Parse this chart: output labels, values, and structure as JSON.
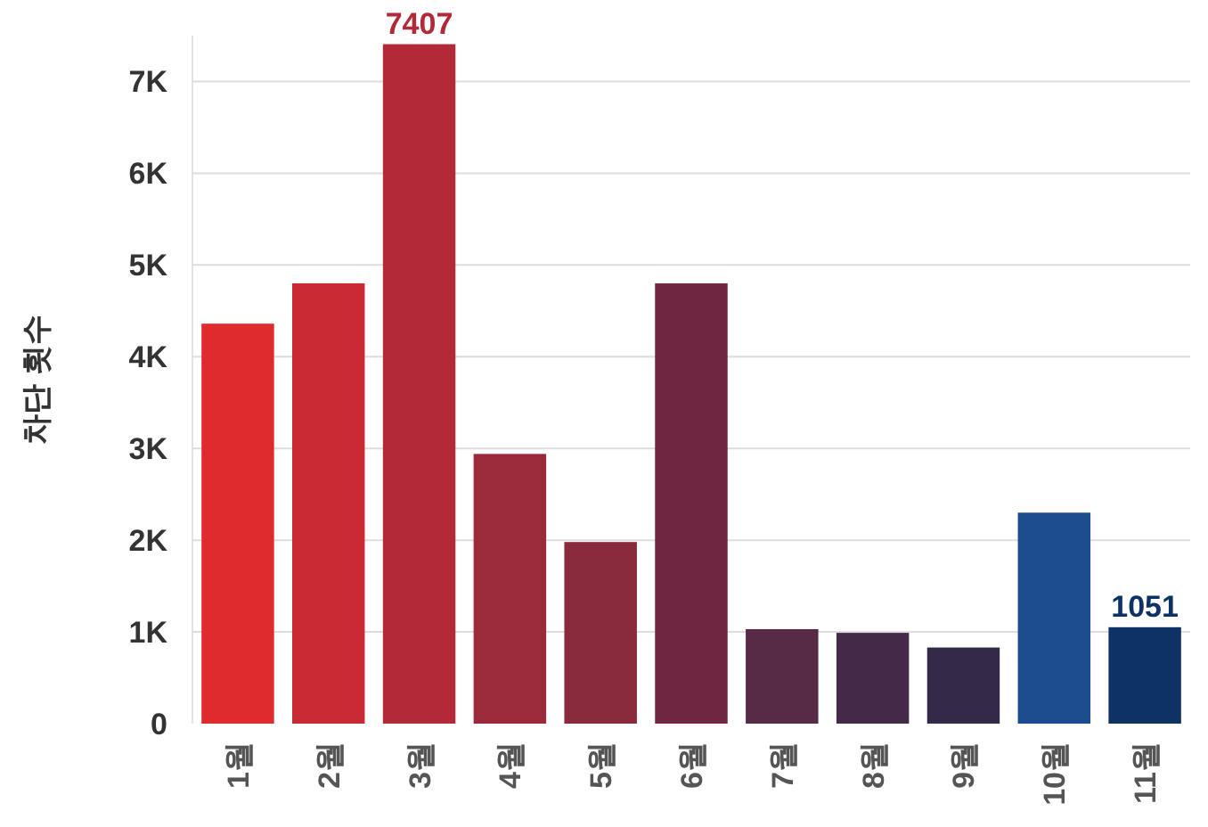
{
  "chart_data": {
    "type": "bar",
    "ylabel": "차단 횟수",
    "categories": [
      "1월",
      "2월",
      "3월",
      "4월",
      "5월",
      "6월",
      "7월",
      "8월",
      "9월",
      "10월",
      "11월"
    ],
    "values": [
      4360,
      4800,
      7407,
      2940,
      1980,
      4800,
      1030,
      990,
      830,
      2300,
      1051
    ],
    "colors": [
      "#df2a2e",
      "#c92a34",
      "#b22a38",
      "#9b2a3a",
      "#8a2a3d",
      "#6f2640",
      "#572a45",
      "#442a48",
      "#332a4a",
      "#1d4c8c",
      "#0d3263"
    ],
    "value_labels": [
      null,
      null,
      "7407",
      null,
      null,
      null,
      null,
      null,
      null,
      null,
      "1051"
    ],
    "ylim": [
      0,
      7500
    ],
    "yticks": [
      0,
      {
        "value": 1000,
        "label": "1K"
      },
      {
        "value": 2000,
        "label": "2K"
      },
      {
        "value": 3000,
        "label": "3K"
      },
      {
        "value": 4000,
        "label": "4K"
      },
      {
        "value": 5000,
        "label": "5K"
      },
      {
        "value": 6000,
        "label": "6K"
      },
      {
        "value": 7000,
        "label": "7K"
      }
    ],
    "grid": "y"
  }
}
